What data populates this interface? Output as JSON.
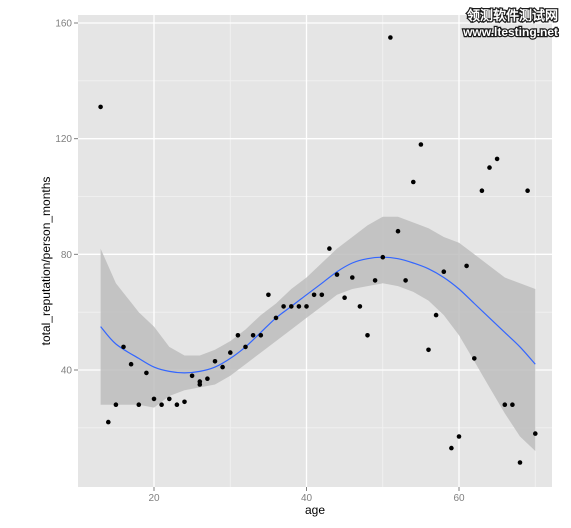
{
  "watermark": {
    "line1": "领测软件测试网",
    "line2": "www.ltesting.net"
  },
  "chart_data": {
    "type": "scatter",
    "xlabel": "age",
    "ylabel": "total_reputation/person_months",
    "xlim": [
      10,
      71
    ],
    "ylim": [
      0,
      164
    ],
    "x_ticks": [
      20,
      40,
      60
    ],
    "y_ticks": [
      40,
      80,
      120,
      160
    ],
    "grid": true,
    "colors": {
      "panel": "#e5e5e5",
      "grid_major": "#ffffff",
      "grid_minor": "#f2f2f2",
      "points": "#000000",
      "smooth_line": "#3366ff",
      "confidence_band": "#bdbdbd"
    },
    "points": [
      {
        "x": 13,
        "y": 131
      },
      {
        "x": 14,
        "y": 22
      },
      {
        "x": 15,
        "y": 28
      },
      {
        "x": 16,
        "y": 48
      },
      {
        "x": 17,
        "y": 42
      },
      {
        "x": 18,
        "y": 28
      },
      {
        "x": 19,
        "y": 39
      },
      {
        "x": 20,
        "y": 30
      },
      {
        "x": 21,
        "y": 28
      },
      {
        "x": 22,
        "y": 30
      },
      {
        "x": 23,
        "y": 28
      },
      {
        "x": 24,
        "y": 29
      },
      {
        "x": 25,
        "y": 38
      },
      {
        "x": 26,
        "y": 35
      },
      {
        "x": 26,
        "y": 36
      },
      {
        "x": 27,
        "y": 37
      },
      {
        "x": 28,
        "y": 43
      },
      {
        "x": 29,
        "y": 41
      },
      {
        "x": 30,
        "y": 46
      },
      {
        "x": 31,
        "y": 52
      },
      {
        "x": 32,
        "y": 48
      },
      {
        "x": 33,
        "y": 52
      },
      {
        "x": 34,
        "y": 52
      },
      {
        "x": 35,
        "y": 66
      },
      {
        "x": 36,
        "y": 58
      },
      {
        "x": 37,
        "y": 62
      },
      {
        "x": 38,
        "y": 62
      },
      {
        "x": 39,
        "y": 62
      },
      {
        "x": 40,
        "y": 62
      },
      {
        "x": 41,
        "y": 66
      },
      {
        "x": 42,
        "y": 66
      },
      {
        "x": 43,
        "y": 82
      },
      {
        "x": 44,
        "y": 73
      },
      {
        "x": 45,
        "y": 65
      },
      {
        "x": 46,
        "y": 72
      },
      {
        "x": 47,
        "y": 62
      },
      {
        "x": 48,
        "y": 52
      },
      {
        "x": 49,
        "y": 71
      },
      {
        "x": 50,
        "y": 79
      },
      {
        "x": 51,
        "y": 155
      },
      {
        "x": 52,
        "y": 88
      },
      {
        "x": 53,
        "y": 71
      },
      {
        "x": 54,
        "y": 105
      },
      {
        "x": 55,
        "y": 118
      },
      {
        "x": 56,
        "y": 47
      },
      {
        "x": 57,
        "y": 59
      },
      {
        "x": 58,
        "y": 74
      },
      {
        "x": 59,
        "y": 13
      },
      {
        "x": 60,
        "y": 17
      },
      {
        "x": 61,
        "y": 76
      },
      {
        "x": 62,
        "y": 44
      },
      {
        "x": 63,
        "y": 102
      },
      {
        "x": 64,
        "y": 110
      },
      {
        "x": 65,
        "y": 113
      },
      {
        "x": 66,
        "y": 28
      },
      {
        "x": 67,
        "y": 28
      },
      {
        "x": 68,
        "y": 8
      },
      {
        "x": 69,
        "y": 102
      },
      {
        "x": 70,
        "y": 18
      }
    ],
    "smooth": {
      "x": [
        13,
        15,
        18,
        20,
        22,
        24,
        26,
        28,
        30,
        32,
        34,
        36,
        38,
        40,
        42,
        44,
        46,
        48,
        50,
        52,
        54,
        56,
        58,
        60,
        62,
        64,
        66,
        68,
        70
      ],
      "y": [
        55,
        49,
        44,
        41,
        39.5,
        39,
        39.5,
        41,
        44,
        48,
        53,
        58,
        62,
        66,
        70,
        74,
        77,
        78.5,
        79,
        78.5,
        77,
        75,
        72,
        68,
        63,
        58,
        53,
        48,
        42
      ],
      "lower": [
        28,
        28,
        28,
        27,
        31,
        33,
        34,
        35,
        38,
        42,
        46,
        50,
        54,
        58,
        62,
        66,
        68,
        69,
        70,
        69,
        67,
        64,
        59,
        52,
        43,
        34,
        25,
        17,
        12
      ],
      "upper": [
        82,
        70,
        60,
        55,
        48,
        45,
        45,
        47,
        50,
        54,
        59,
        63,
        68,
        72,
        77,
        82,
        86,
        90,
        93,
        93,
        91,
        89,
        86,
        84,
        80,
        76,
        72,
        70,
        68
      ]
    }
  }
}
